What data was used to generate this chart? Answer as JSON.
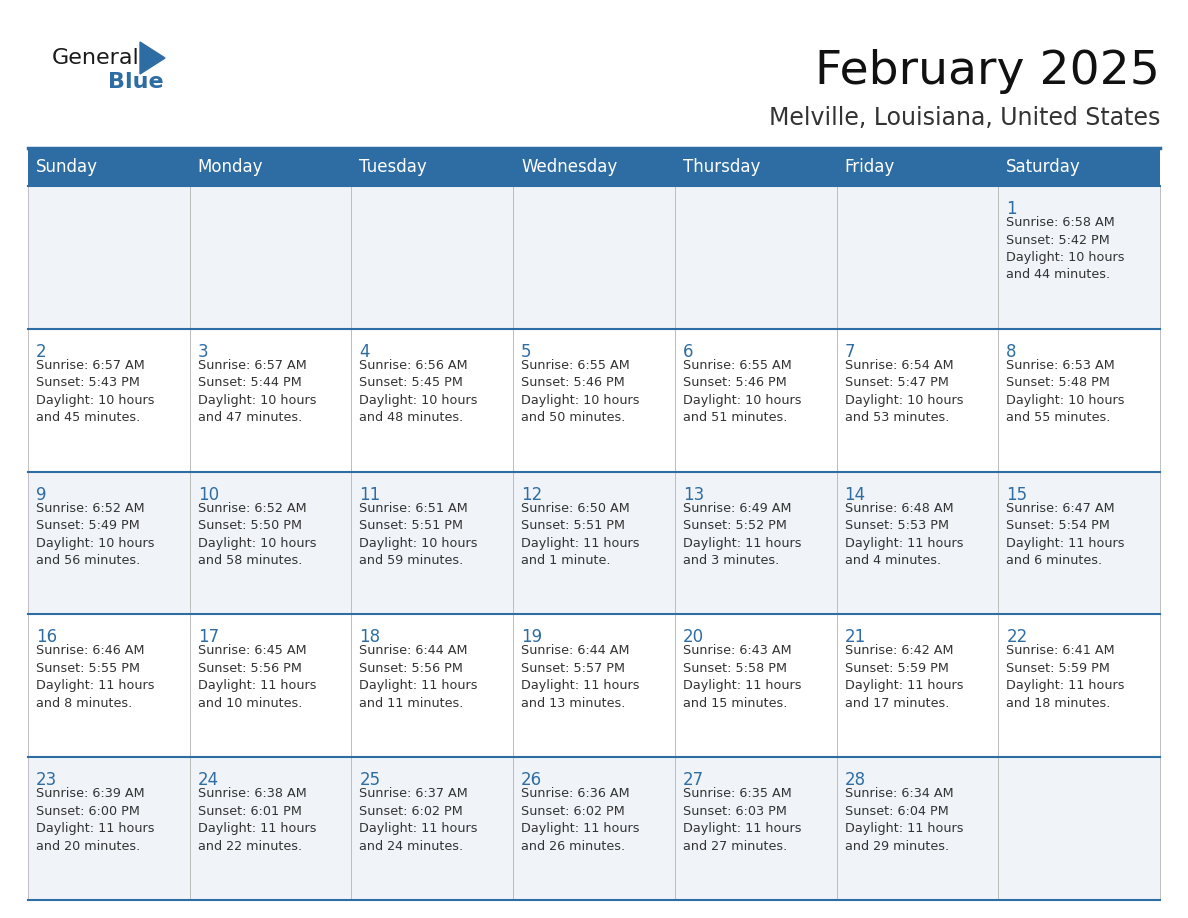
{
  "title": "February 2025",
  "subtitle": "Melville, Louisiana, United States",
  "header_bg": "#2E6DA4",
  "header_text_color": "#FFFFFF",
  "cell_bg_even": "#F0F4F8",
  "cell_bg_odd": "#FFFFFF",
  "day_number_color": "#2E6DA4",
  "info_text_color": "#333333",
  "border_color": "#2E6DA4",
  "grid_color": "#BBBBBB",
  "days_of_week": [
    "Sunday",
    "Monday",
    "Tuesday",
    "Wednesday",
    "Thursday",
    "Friday",
    "Saturday"
  ],
  "weeks": [
    [
      {
        "day": null,
        "info": ""
      },
      {
        "day": null,
        "info": ""
      },
      {
        "day": null,
        "info": ""
      },
      {
        "day": null,
        "info": ""
      },
      {
        "day": null,
        "info": ""
      },
      {
        "day": null,
        "info": ""
      },
      {
        "day": 1,
        "info": "Sunrise: 6:58 AM\nSunset: 5:42 PM\nDaylight: 10 hours\nand 44 minutes."
      }
    ],
    [
      {
        "day": 2,
        "info": "Sunrise: 6:57 AM\nSunset: 5:43 PM\nDaylight: 10 hours\nand 45 minutes."
      },
      {
        "day": 3,
        "info": "Sunrise: 6:57 AM\nSunset: 5:44 PM\nDaylight: 10 hours\nand 47 minutes."
      },
      {
        "day": 4,
        "info": "Sunrise: 6:56 AM\nSunset: 5:45 PM\nDaylight: 10 hours\nand 48 minutes."
      },
      {
        "day": 5,
        "info": "Sunrise: 6:55 AM\nSunset: 5:46 PM\nDaylight: 10 hours\nand 50 minutes."
      },
      {
        "day": 6,
        "info": "Sunrise: 6:55 AM\nSunset: 5:46 PM\nDaylight: 10 hours\nand 51 minutes."
      },
      {
        "day": 7,
        "info": "Sunrise: 6:54 AM\nSunset: 5:47 PM\nDaylight: 10 hours\nand 53 minutes."
      },
      {
        "day": 8,
        "info": "Sunrise: 6:53 AM\nSunset: 5:48 PM\nDaylight: 10 hours\nand 55 minutes."
      }
    ],
    [
      {
        "day": 9,
        "info": "Sunrise: 6:52 AM\nSunset: 5:49 PM\nDaylight: 10 hours\nand 56 minutes."
      },
      {
        "day": 10,
        "info": "Sunrise: 6:52 AM\nSunset: 5:50 PM\nDaylight: 10 hours\nand 58 minutes."
      },
      {
        "day": 11,
        "info": "Sunrise: 6:51 AM\nSunset: 5:51 PM\nDaylight: 10 hours\nand 59 minutes."
      },
      {
        "day": 12,
        "info": "Sunrise: 6:50 AM\nSunset: 5:51 PM\nDaylight: 11 hours\nand 1 minute."
      },
      {
        "day": 13,
        "info": "Sunrise: 6:49 AM\nSunset: 5:52 PM\nDaylight: 11 hours\nand 3 minutes."
      },
      {
        "day": 14,
        "info": "Sunrise: 6:48 AM\nSunset: 5:53 PM\nDaylight: 11 hours\nand 4 minutes."
      },
      {
        "day": 15,
        "info": "Sunrise: 6:47 AM\nSunset: 5:54 PM\nDaylight: 11 hours\nand 6 minutes."
      }
    ],
    [
      {
        "day": 16,
        "info": "Sunrise: 6:46 AM\nSunset: 5:55 PM\nDaylight: 11 hours\nand 8 minutes."
      },
      {
        "day": 17,
        "info": "Sunrise: 6:45 AM\nSunset: 5:56 PM\nDaylight: 11 hours\nand 10 minutes."
      },
      {
        "day": 18,
        "info": "Sunrise: 6:44 AM\nSunset: 5:56 PM\nDaylight: 11 hours\nand 11 minutes."
      },
      {
        "day": 19,
        "info": "Sunrise: 6:44 AM\nSunset: 5:57 PM\nDaylight: 11 hours\nand 13 minutes."
      },
      {
        "day": 20,
        "info": "Sunrise: 6:43 AM\nSunset: 5:58 PM\nDaylight: 11 hours\nand 15 minutes."
      },
      {
        "day": 21,
        "info": "Sunrise: 6:42 AM\nSunset: 5:59 PM\nDaylight: 11 hours\nand 17 minutes."
      },
      {
        "day": 22,
        "info": "Sunrise: 6:41 AM\nSunset: 5:59 PM\nDaylight: 11 hours\nand 18 minutes."
      }
    ],
    [
      {
        "day": 23,
        "info": "Sunrise: 6:39 AM\nSunset: 6:00 PM\nDaylight: 11 hours\nand 20 minutes."
      },
      {
        "day": 24,
        "info": "Sunrise: 6:38 AM\nSunset: 6:01 PM\nDaylight: 11 hours\nand 22 minutes."
      },
      {
        "day": 25,
        "info": "Sunrise: 6:37 AM\nSunset: 6:02 PM\nDaylight: 11 hours\nand 24 minutes."
      },
      {
        "day": 26,
        "info": "Sunrise: 6:36 AM\nSunset: 6:02 PM\nDaylight: 11 hours\nand 26 minutes."
      },
      {
        "day": 27,
        "info": "Sunrise: 6:35 AM\nSunset: 6:03 PM\nDaylight: 11 hours\nand 27 minutes."
      },
      {
        "day": 28,
        "info": "Sunrise: 6:34 AM\nSunset: 6:04 PM\nDaylight: 11 hours\nand 29 minutes."
      },
      {
        "day": null,
        "info": ""
      }
    ]
  ],
  "logo_text_general": "General",
  "logo_text_blue": "Blue",
  "logo_color_general": "#1a1a1a",
  "logo_color_blue": "#2E6DA4",
  "title_fontsize": 34,
  "subtitle_fontsize": 17,
  "header_fontsize": 12,
  "day_number_fontsize": 12,
  "info_fontsize": 9.2
}
